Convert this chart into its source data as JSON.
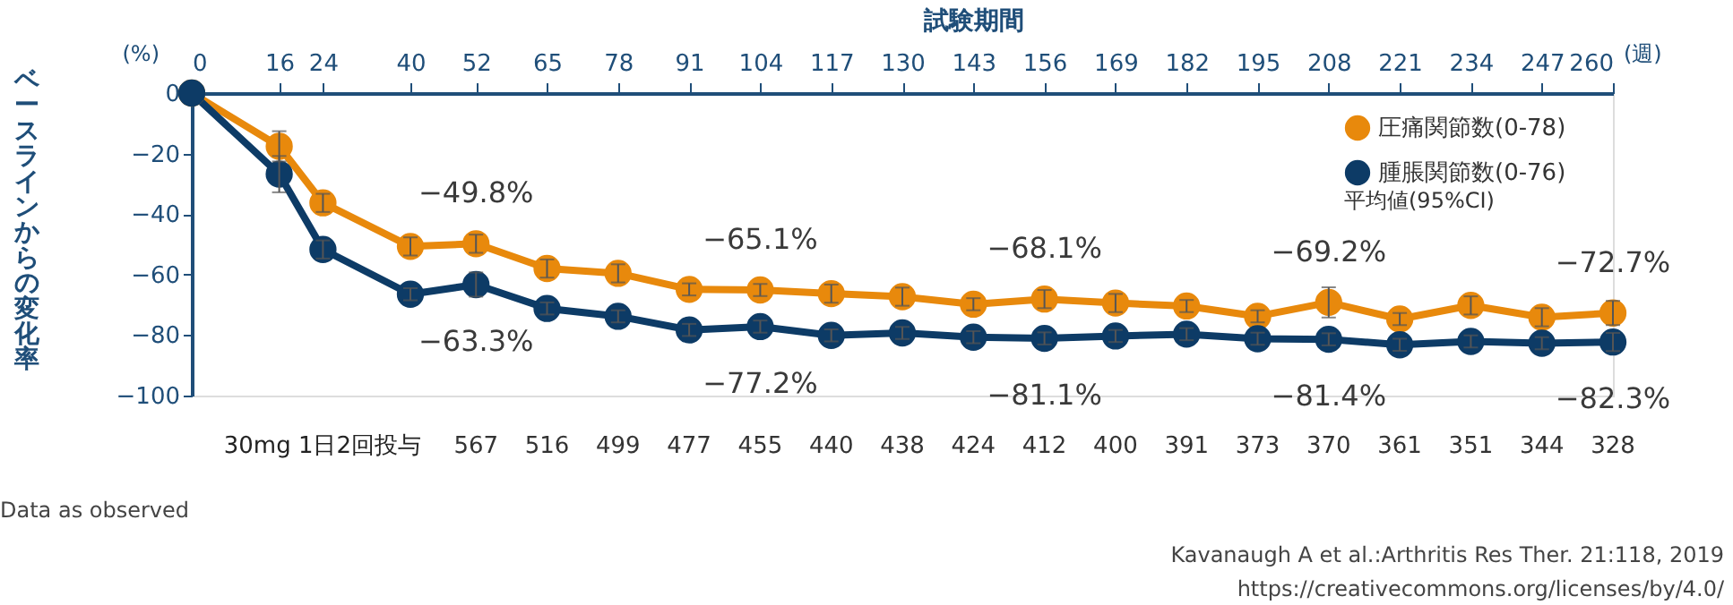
{
  "chart_data": {
    "type": "line",
    "xlabel": "試験期間",
    "ylabel": "ベースラインからの変化率",
    "x": [
      0,
      16,
      24,
      40,
      52,
      65,
      78,
      91,
      104,
      117,
      130,
      143,
      156,
      169,
      182,
      195,
      208,
      221,
      234,
      247,
      260
    ],
    "xlim": [
      0,
      260
    ],
    "xticks": [
      0,
      16,
      24,
      40,
      52,
      65,
      78,
      91,
      104,
      117,
      130,
      143,
      156,
      169,
      182,
      195,
      208,
      221,
      234,
      247,
      260
    ],
    "ylim": [
      -100,
      0
    ],
    "yticks": [
      -100,
      -80,
      -60,
      -40,
      -20,
      0
    ],
    "series": [
      {
        "name": "圧痛関節数(0-78)",
        "color": "#e8890c",
        "values": [
          0,
          -17.6,
          -36.3,
          -50.7,
          -49.8,
          -58,
          -59.6,
          -64.9,
          -65.1,
          -66.3,
          -67.3,
          -69.8,
          -68.1,
          -69.4,
          -70.4,
          -73.8,
          -69.2,
          -74.7,
          -70.2,
          -74.1,
          -72.7
        ],
        "errors": [
          null,
          5,
          3,
          3,
          3,
          3,
          3,
          2,
          2,
          3,
          3,
          2,
          3,
          3,
          2,
          2,
          5,
          2,
          3,
          3,
          4
        ],
        "value_labels": [
          null,
          null,
          null,
          null,
          "−49.8%",
          null,
          null,
          null,
          "−65.1%",
          null,
          null,
          null,
          "−68.1%",
          null,
          null,
          null,
          "−69.2%",
          null,
          null,
          null,
          "−72.7%"
        ]
      },
      {
        "name": "腫脹関節数(0-76)",
        "color": "#0d3b66",
        "values": [
          0,
          -26.8,
          -51.7,
          -66.5,
          -63.3,
          -71.2,
          -73.8,
          -78.3,
          -77.2,
          -80.1,
          -79.3,
          -80.7,
          -81.1,
          -80.3,
          -79.7,
          -81.2,
          -81.4,
          -83.2,
          -82.1,
          -82.7,
          -82.3
        ],
        "errors": [
          null,
          6,
          3,
          2,
          4,
          2,
          2,
          2,
          2,
          2,
          2,
          2,
          2,
          2,
          2,
          2,
          2,
          2,
          2,
          2,
          3
        ],
        "value_labels": [
          null,
          null,
          null,
          null,
          "−63.3%",
          null,
          null,
          null,
          "−77.2%",
          null,
          null,
          null,
          "−81.1%",
          null,
          null,
          null,
          "−81.4%",
          null,
          null,
          null,
          "−82.3%"
        ]
      }
    ],
    "marker": "circle",
    "legend": "top right",
    "grid": false,
    "annotations": [
      "(%)",
      "(週)",
      "平均値(95%CI)",
      "30mg 1日2回投与",
      "Data as observed",
      "Kavanaugh A et al.:Arthritis Res Ther. 21:118, 2019",
      "https://creativecommons.org/licenses/by/4.0/",
      "567",
      "516",
      "499",
      "477",
      "455",
      "440",
      "438",
      "424",
      "412",
      "400",
      "391",
      "373",
      "370",
      "361",
      "351",
      "344",
      "328"
    ]
  }
}
